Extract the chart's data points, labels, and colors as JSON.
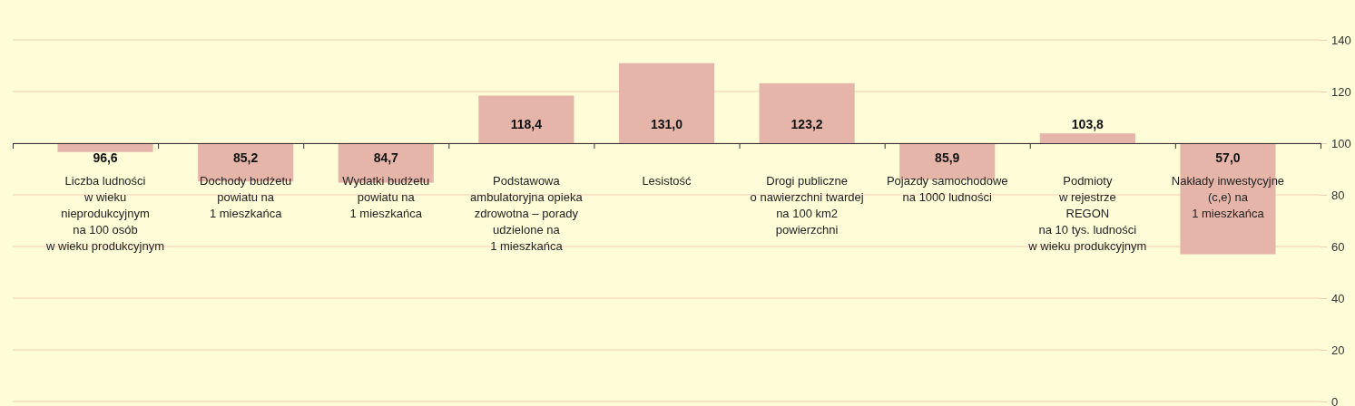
{
  "chart_data": {
    "type": "bar",
    "categories": [
      "Liczba ludności\nw wieku\nnieprodukcyjnym\nna 100 osób\nw wieku produkcyjnym",
      "Dochody budżetu\npowiatu na\n1 mieszkańca",
      "Wydatki budżetu\npowiatu na\n1 mieszkańca",
      "Podstawowa\nambulatoryjna opieka\nzdrowotna – porady\nudzielone na\n1 mieszkańca",
      "Lesistość",
      "Drogi publiczne\no nawierzchni twardej\nna 100 km2\npowierzchni",
      "Pojazdy samochodowe\nna 1000 ludności",
      "Podmioty\nw rejestrze\nREGON\nna 10 tys. ludności\nw wieku produkcyjnym",
      "Nakłady inwestycyjne\n(c,e) na\n1 mieszkańca"
    ],
    "base": [
      100,
      100,
      100,
      100,
      100,
      100,
      100,
      100,
      100
    ],
    "values": [
      -3.4,
      -14.8,
      -15.3,
      18.4,
      31.0,
      23.2,
      -14.1,
      3.8,
      -43.0
    ],
    "value_labels": [
      "96,6",
      "85,2",
      "84,7",
      "118,4",
      "131,0",
      "123,2",
      "85,9",
      "103,8",
      "57,0"
    ],
    "color": "#e6b5aa",
    "ylim": [
      0,
      140
    ],
    "yticks": [
      0,
      20,
      40,
      60,
      80,
      100,
      120,
      140
    ],
    "grid": "y"
  }
}
